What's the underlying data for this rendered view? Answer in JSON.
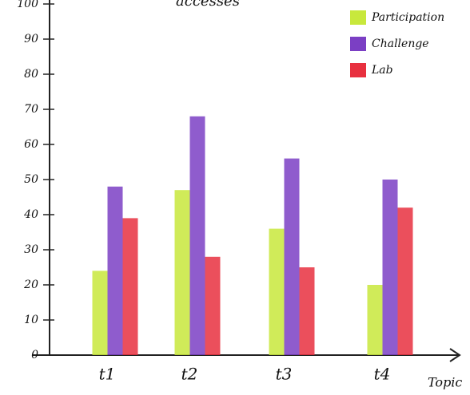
{
  "chart_data": {
    "type": "bar",
    "title": "accesses",
    "x_label": "Topic",
    "categories": [
      "t1",
      "t2",
      "t3",
      "t4"
    ],
    "series": [
      {
        "name": "Participation",
        "color": "#c8e83c",
        "values": [
          24,
          47,
          36,
          20
        ]
      },
      {
        "name": "Challenge",
        "color": "#7b3fc4",
        "values": [
          48,
          68,
          56,
          50
        ]
      },
      {
        "name": "Lab",
        "color": "#e8303f",
        "values": [
          39,
          28,
          25,
          42
        ]
      }
    ],
    "ylim": [
      0,
      100
    ],
    "yticks": [
      0,
      10,
      20,
      30,
      40,
      50,
      60,
      70,
      80,
      90,
      100
    ],
    "legend": "top-right"
  }
}
